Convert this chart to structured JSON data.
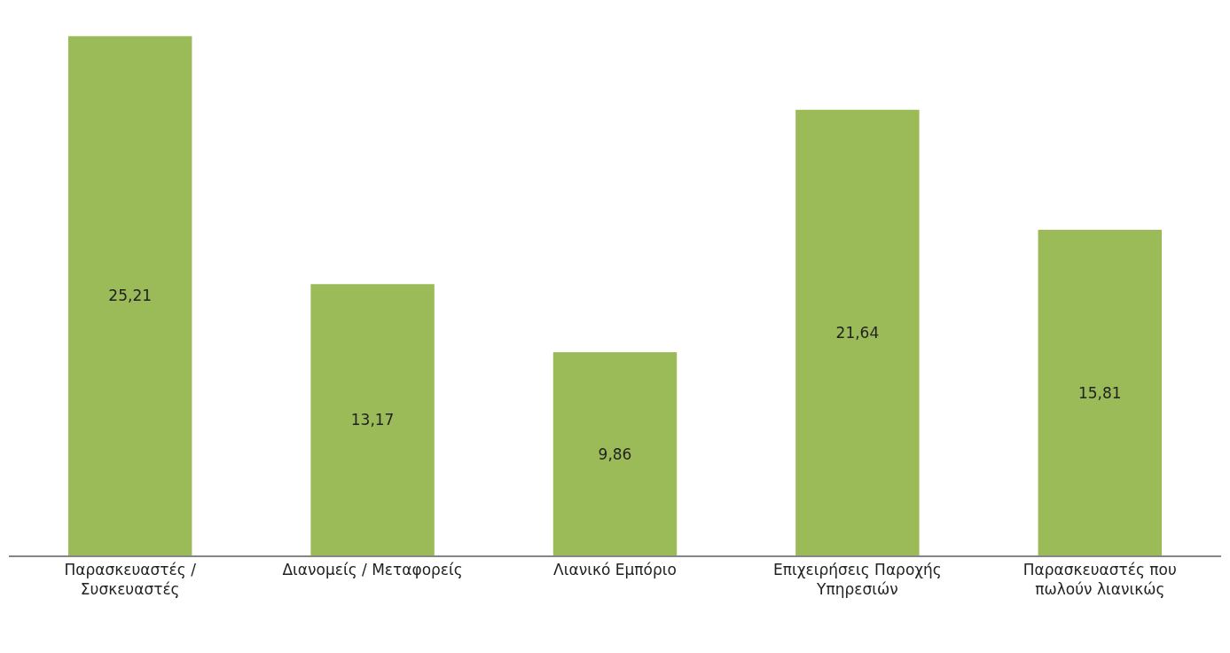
{
  "chart_data": {
    "type": "bar",
    "categories": [
      "Παρασκευαστές / Συσκευαστές",
      "Διανομείς / Μεταφορείς",
      "Λιανικό Εμπόριο",
      "Επιχειρήσεις Παροχής Υπηρεσιών",
      "Παρασκευαστές που πωλούν λιανικώς"
    ],
    "values": [
      25.21,
      13.17,
      9.86,
      21.64,
      15.81
    ],
    "value_labels": [
      "25,21",
      "13,17",
      "9,86",
      "21,64",
      "15,81"
    ],
    "color": "#9bbb59"
  }
}
